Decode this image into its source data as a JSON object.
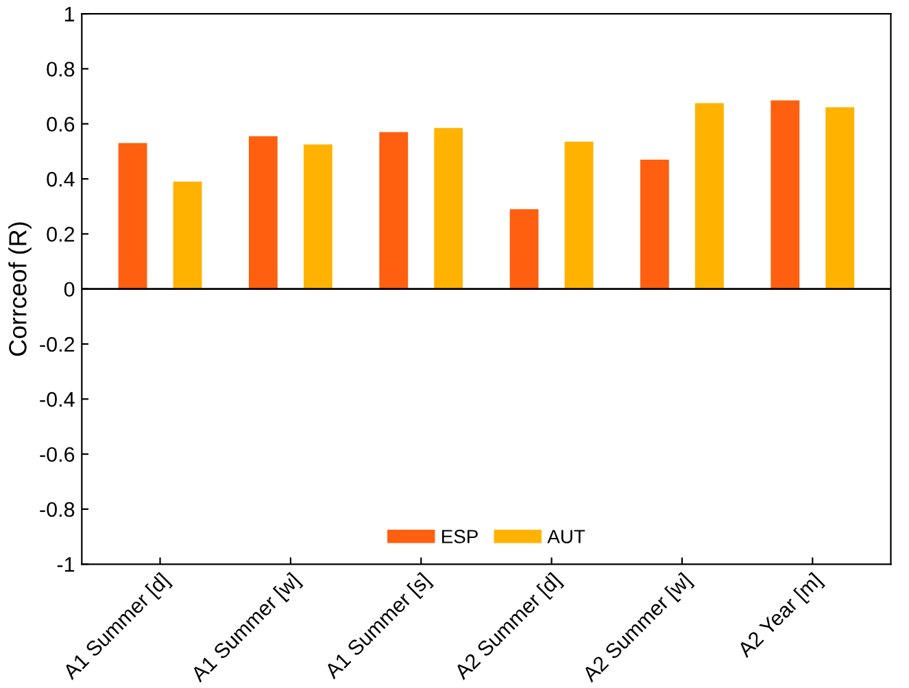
{
  "chart_data": {
    "type": "bar",
    "ylabel": "Corrceof (R)",
    "categories": [
      "A1 Summer [d]",
      "A1 Summer [w]",
      "A1 Summer [s]",
      "A2 Summer [d]",
      "A2 Summer [w]",
      "A2 Year [m]"
    ],
    "series": [
      {
        "name": "ESP",
        "color": "#ff6010",
        "values": [
          0.53,
          0.555,
          0.57,
          0.29,
          0.47,
          0.685
        ]
      },
      {
        "name": "AUT",
        "color": "#ffb300",
        "values": [
          0.39,
          0.525,
          0.585,
          0.535,
          0.675,
          0.66
        ]
      }
    ],
    "ylim": [
      -1,
      1
    ],
    "yticks": [
      -1,
      -0.8,
      -0.6,
      -0.4,
      -0.2,
      0,
      0.2,
      0.4,
      0.6,
      0.8,
      1
    ],
    "ref_lines": [
      {
        "axis": "y",
        "value": 0,
        "color": "#000000",
        "line_style": "solid"
      }
    ],
    "grid": false,
    "legend": "bottom"
  }
}
